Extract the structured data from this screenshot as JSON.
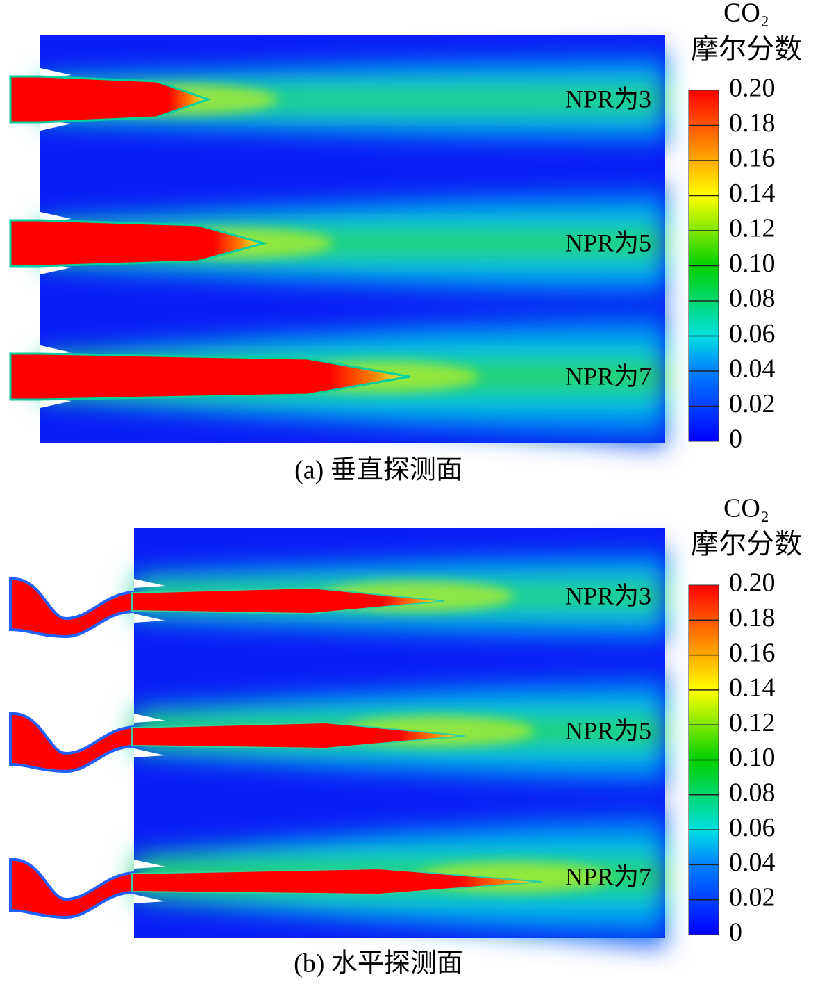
{
  "panels": [
    {
      "caption": "(a) 垂直探测面",
      "colorbar": {
        "title": "CO₂",
        "subtitle": "摩尔分数",
        "ticks": [
          "0.20",
          "0.18",
          "0.16",
          "0.14",
          "0.12",
          "0.10",
          "0.08",
          "0.06",
          "0.04",
          "0.02",
          "0"
        ]
      },
      "rows": [
        {
          "label": "NPR为3"
        },
        {
          "label": "NPR为5"
        },
        {
          "label": "NPR为7"
        }
      ]
    },
    {
      "caption": "(b) 水平探测面",
      "colorbar": {
        "title": "CO₂",
        "subtitle": "摩尔分数",
        "ticks": [
          "0.20",
          "0.18",
          "0.16",
          "0.14",
          "0.12",
          "0.10",
          "0.08",
          "0.06",
          "0.04",
          "0.02",
          "0"
        ]
      },
      "rows": [
        {
          "label": "NPR为3"
        },
        {
          "label": "NPR为5"
        },
        {
          "label": "NPR为7"
        }
      ]
    }
  ]
}
